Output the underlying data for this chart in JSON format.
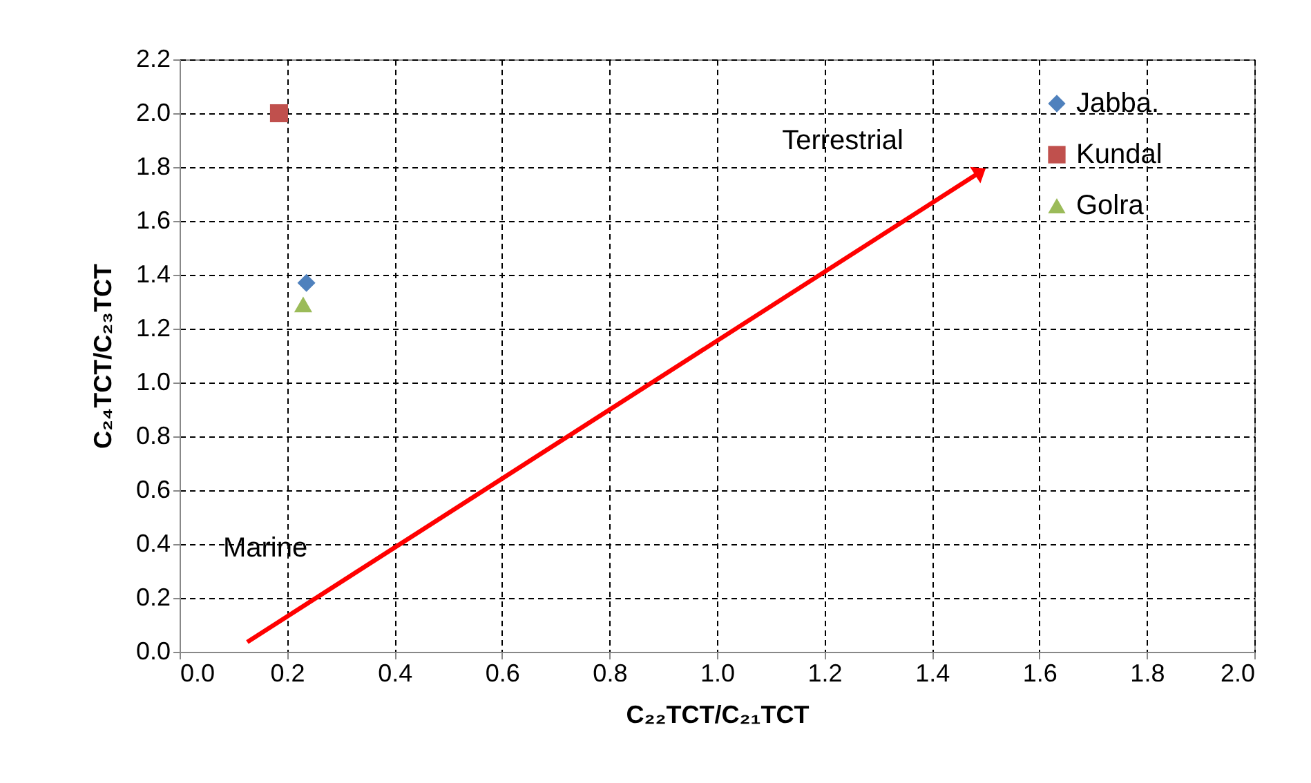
{
  "chart_data": {
    "type": "scatter",
    "xlabel": "C₂₂TCT/C₂₁TCT",
    "ylabel": "C₂₄TCT/C₂₃TCT",
    "series": [
      {
        "name": "Jabba.",
        "color": "#4f81bd",
        "marker": "diamond",
        "x": [
          0.236
        ],
        "values": [
          1.37
        ]
      },
      {
        "name": "Kundal",
        "color": "#c0504d",
        "marker": "square",
        "x": [
          0.185
        ],
        "values": [
          2.0
        ]
      },
      {
        "name": "Golra",
        "color": "#9bbb59",
        "marker": "triangle",
        "x": [
          0.23
        ],
        "values": [
          1.29
        ]
      }
    ],
    "xlim": [
      0,
      2
    ],
    "ylim": [
      0,
      2.2
    ],
    "xticks": [
      {
        "value": 0,
        "label": "0.0"
      },
      {
        "value": 0.2,
        "label": "0.2"
      },
      {
        "value": 0.4,
        "label": "0.4"
      },
      {
        "value": 0.6,
        "label": "0.6"
      },
      {
        "value": 0.8,
        "label": "0.8"
      },
      {
        "value": 1,
        "label": "1.0"
      },
      {
        "value": 1.2,
        "label": "1.2"
      },
      {
        "value": 1.4,
        "label": "1.4"
      },
      {
        "value": 1.6,
        "label": "1.6"
      },
      {
        "value": 1.8,
        "label": "1.8"
      },
      {
        "value": 2,
        "label": "2.0"
      }
    ],
    "yticks": [
      {
        "value": 0,
        "label": "0.0"
      },
      {
        "value": 0.2,
        "label": "0.2"
      },
      {
        "value": 0.4,
        "label": "0.4"
      },
      {
        "value": 0.6,
        "label": "0.6"
      },
      {
        "value": 0.8,
        "label": "0.8"
      },
      {
        "value": 1,
        "label": "1.0"
      },
      {
        "value": 1.2,
        "label": "1.2"
      },
      {
        "value": 1.4,
        "label": "1.4"
      },
      {
        "value": 1.6,
        "label": "1.6"
      },
      {
        "value": 1.8,
        "label": "1.8"
      },
      {
        "value": 2,
        "label": "2.0"
      },
      {
        "value": 2.2,
        "label": "2.2"
      }
    ],
    "annotations": [
      "Terrestrial",
      "Marine"
    ],
    "grid": true,
    "legend": "top right"
  }
}
